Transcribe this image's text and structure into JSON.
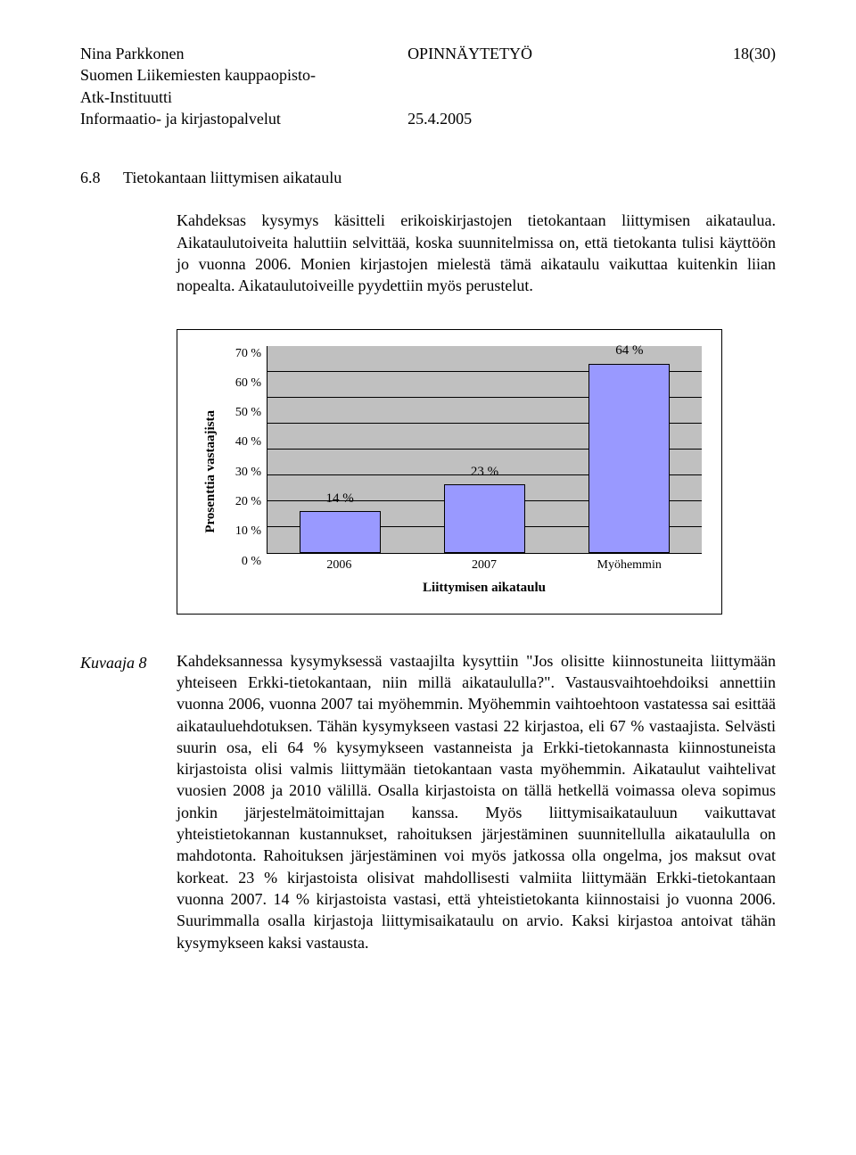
{
  "header": {
    "author": "Nina Parkkonen",
    "line2": "Suomen Liikemiesten kauppaopisto-",
    "line3": "Atk-Instituutti",
    "line4": "Informaatio- ja kirjastopalvelut",
    "doc_type": "OPINNÄYTETYÖ",
    "page": "18(30)",
    "date": "25.4.2005"
  },
  "section": {
    "num": "6.8",
    "title": "Tietokantaan liittymisen aikataulu",
    "body": "Kahdeksas kysymys käsitteli erikoiskirjastojen tietokantaan liittymisen aikataulua. Aikataulutoiveita haluttiin selvittää, koska suunnitelmissa on, että tietokanta tulisi käyttöön jo vuonna 2006. Monien kirjastojen mielestä tämä aikataulu vaikuttaa kuitenkin liian nopealta. Aikataulutoiveille pyydettiin myös perustelut."
  },
  "chart": {
    "type": "bar",
    "y_label": "Prosenttia vastaajista",
    "x_label": "Liittymisen aikataulu",
    "y_ticks": [
      "0 %",
      "10 %",
      "20 %",
      "30 %",
      "40 %",
      "50 %",
      "60 %",
      "70 %"
    ],
    "y_max": 70,
    "categories": [
      "2006",
      "2007",
      "Myöhemmin"
    ],
    "values": [
      14,
      23,
      64
    ],
    "value_labels": [
      "14 %",
      "23 %",
      "64 %"
    ],
    "bar_color": "#9999ff",
    "bar_border": "#000000",
    "plot_bg": "#c0c0c0",
    "grid_color": "#000000",
    "bar_width_pct": 56,
    "value_label_fontsize": 15,
    "axis_title_fontsize": 15,
    "tick_fontsize": 14
  },
  "caption": {
    "label": "Kuvaaja 8",
    "text": "Kahdeksannessa kysymyksessä vastaajilta kysyttiin \"Jos olisitte kiinnostuneita liittymään yhteiseen Erkki-tietokantaan, niin millä aikataululla?\". Vastausvaihtoehdoiksi annettiin vuonna 2006, vuonna 2007 tai myöhemmin. Myöhemmin vaihtoehtoon vastatessa sai esittää aikatauluehdotuksen. Tähän kysymykseen vastasi 22 kirjastoa, eli 67 % vastaajista. Selvästi suurin osa, eli 64 % kysymykseen vastanneista ja Erkki-tietokannasta kiinnostuneista kirjastoista olisi valmis liittymään tietokantaan vasta myöhemmin. Aikataulut vaihtelivat vuosien 2008 ja 2010 välillä. Osalla kirjastoista on tällä hetkellä voimassa oleva sopimus jonkin järjestelmätoimittajan kanssa. Myös liittymisaikatauluun vaikuttavat yhteistietokannan kustannukset, rahoituksen järjestäminen suunnitellulla aikataululla on mahdotonta. Rahoituksen järjestäminen voi myös jatkossa olla ongelma, jos maksut ovat korkeat. 23 % kirjastoista olisivat mahdollisesti valmiita liittymään Erkki-tietokantaan vuonna 2007. 14 % kirjastoista vastasi, että yhteistietokanta kiinnostaisi jo vuonna 2006. Suurimmalla osalla kirjastoja liittymisaikataulu on arvio. Kaksi kirjastoa antoivat tähän kysymykseen kaksi vastausta."
  }
}
